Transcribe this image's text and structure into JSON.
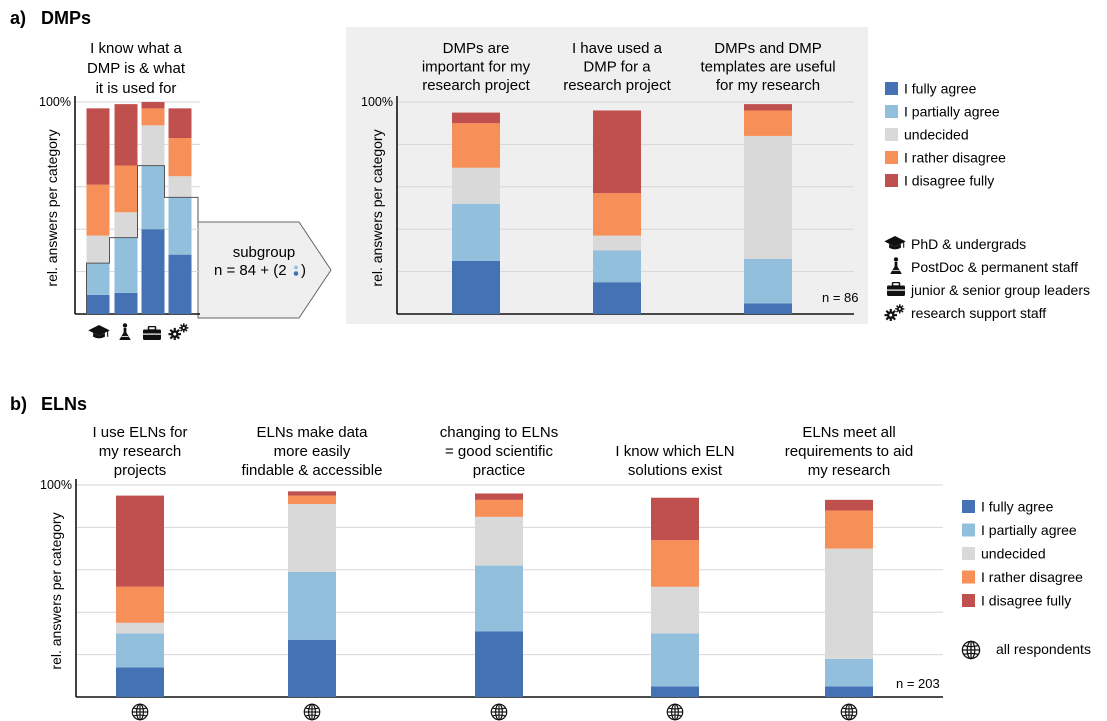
{
  "colors": {
    "fully_agree": "#4472b4",
    "partially_agree": "#92bfdc",
    "undecided": "#d9d9d9",
    "rather_disagree": "#f78f58",
    "disagree_fully": "#c0504d",
    "panel_bg": "#efefef",
    "grid": "#d6d6d6"
  },
  "section_a": {
    "label": "a)",
    "title": "DMPs",
    "subgroup_label": "subgroup",
    "subgroup_n": "n = 84 + (2",
    "subgroup_close": ")",
    "n_label": "n = 86",
    "group_icons": [
      "graduation-cap-icon",
      "flask-person-icon",
      "briefcase-icon",
      "gears-icon"
    ]
  },
  "section_b": {
    "label": "b)",
    "title": "ELNs",
    "n_label": "n = 203",
    "all_respondents_label": "all respondents",
    "globe_icon": "globe-icon"
  },
  "legend_a": [
    "I fully agree",
    "I partially agree",
    "undecided",
    "I rather disagree",
    "I disagree fully"
  ],
  "legend_b": [
    "I fully agree",
    "I partially agree",
    "undecided",
    "I rather disagree",
    "I disagree fully"
  ],
  "group_legend": [
    {
      "icon": "graduation-cap-icon",
      "label": "PhD & undergrads"
    },
    {
      "icon": "flask-person-icon",
      "label": "PostDoc & permanent staff"
    },
    {
      "icon": "briefcase-icon",
      "label": "junior & senior group leaders"
    },
    {
      "icon": "gears-icon",
      "label": "research support staff"
    }
  ],
  "chart_data": [
    {
      "id": "dmp-subgroups",
      "type": "bar",
      "stacked": true,
      "title": [
        "I know what a",
        "DMP is & what",
        "it is used for"
      ],
      "ylabel": "rel. answers per category",
      "ytick": "100%",
      "ylim": [
        0,
        100
      ],
      "categories": [
        "PhD & undergrads",
        "PostDoc & permanent staff",
        "junior & senior group leaders",
        "research support staff"
      ],
      "series": [
        {
          "name": "I fully agree",
          "values": [
            9,
            10,
            40,
            28
          ]
        },
        {
          "name": "I partially agree",
          "values": [
            15,
            26,
            30,
            27
          ]
        },
        {
          "name": "undecided",
          "values": [
            13,
            12,
            19,
            10
          ]
        },
        {
          "name": "I rather disagree",
          "values": [
            24,
            22,
            8,
            18
          ]
        },
        {
          "name": "I disagree fully",
          "values": [
            36,
            29,
            3,
            14
          ]
        }
      ]
    },
    {
      "id": "dmp-main",
      "type": "bar",
      "stacked": true,
      "ylabel": "rel. answers per category",
      "ytick": "100%",
      "ylim": [
        0,
        100
      ],
      "categories": [
        [
          "DMPs are",
          "important for my",
          "research project"
        ],
        [
          "I have used a",
          "DMP for a",
          "research project"
        ],
        [
          "DMPs and DMP",
          "templates are useful",
          "for my research"
        ]
      ],
      "series": [
        {
          "name": "I fully agree",
          "values": [
            25,
            15,
            5
          ]
        },
        {
          "name": "I partially agree",
          "values": [
            27,
            15,
            21
          ]
        },
        {
          "name": "undecided",
          "values": [
            17,
            7,
            58
          ]
        },
        {
          "name": "I rather disagree",
          "values": [
            21,
            20,
            12
          ]
        },
        {
          "name": "I disagree fully",
          "values": [
            5,
            39,
            3
          ]
        }
      ]
    },
    {
      "id": "eln-main",
      "type": "bar",
      "stacked": true,
      "ylabel": "rel. answers per category",
      "ytick": "100%",
      "ylim": [
        0,
        100
      ],
      "categories": [
        [
          "I use ELNs for",
          "my research",
          "projects"
        ],
        [
          "ELNs make data",
          "more easily",
          "findable & accessible"
        ],
        [
          "changing to ELNs",
          "= good scientific",
          "practice"
        ],
        [
          "I know which ELN",
          "solutions exist"
        ],
        [
          "ELNs meet all",
          "requirements to aid",
          "my research"
        ]
      ],
      "series": [
        {
          "name": "I fully agree",
          "values": [
            14,
            27,
            31,
            5,
            5
          ]
        },
        {
          "name": "I partially agree",
          "values": [
            16,
            32,
            31,
            25,
            13
          ]
        },
        {
          "name": "undecided",
          "values": [
            5,
            32,
            23,
            22,
            52
          ]
        },
        {
          "name": "I rather disagree",
          "values": [
            17,
            4,
            8,
            22,
            18
          ]
        },
        {
          "name": "I disagree fully",
          "values": [
            43,
            2,
            3,
            20,
            5
          ]
        }
      ]
    }
  ]
}
